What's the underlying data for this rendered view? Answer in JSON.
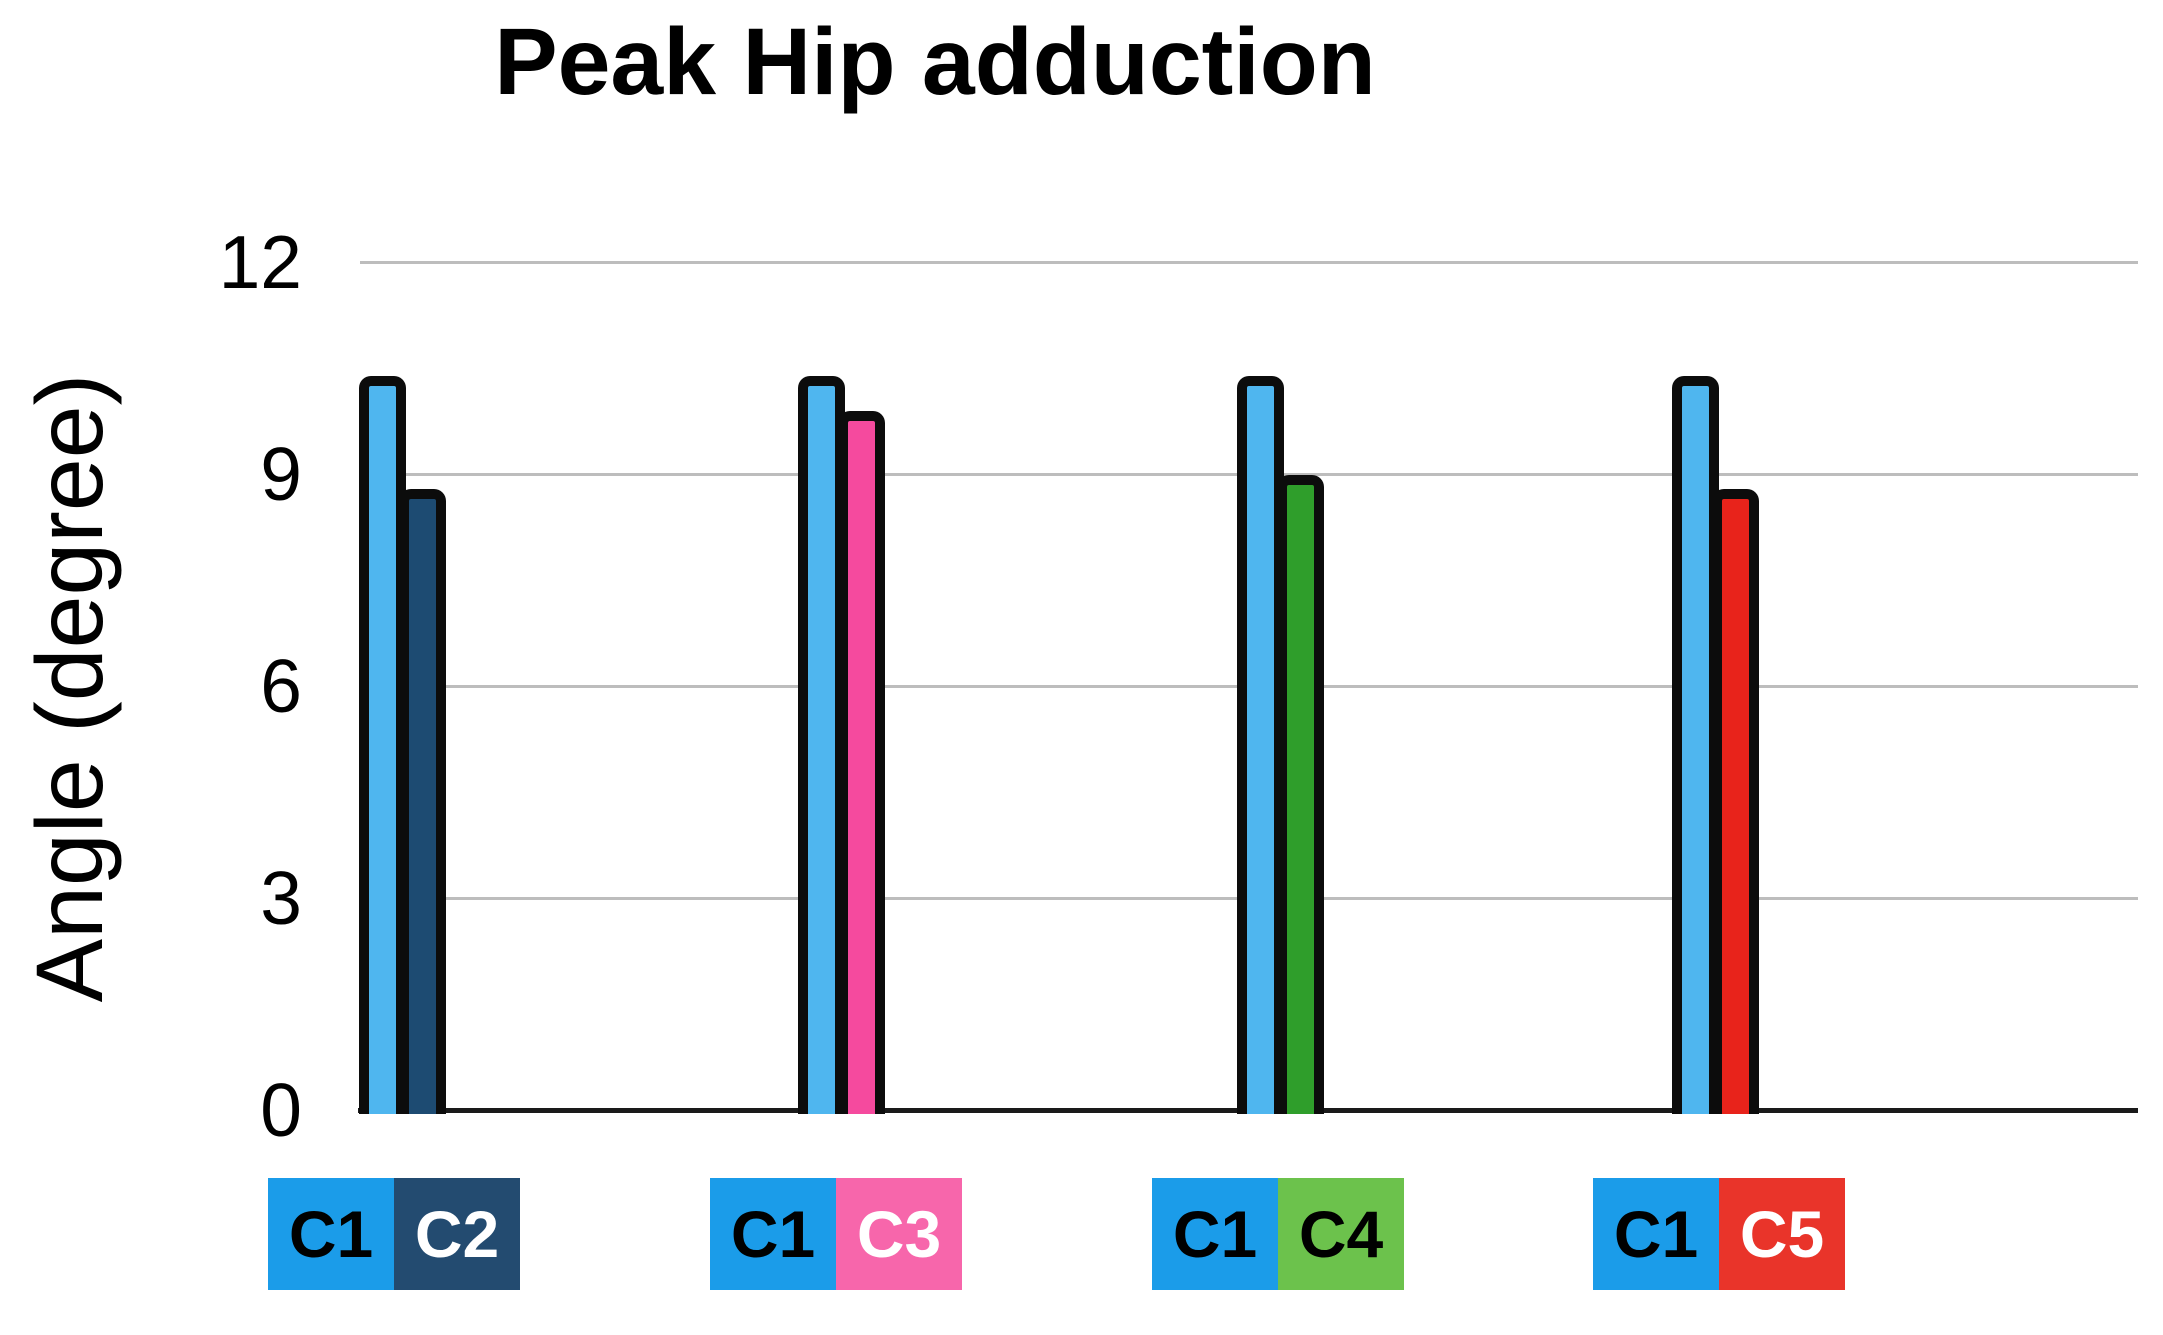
{
  "chart_data": {
    "type": "bar",
    "title": "Peak Hip adduction",
    "xlabel": "",
    "ylabel": "Angle (degree)",
    "ylim": [
      0,
      12
    ],
    "yticks": [
      12,
      9,
      6,
      3,
      0
    ],
    "ytick_labels": [
      "12",
      "9",
      "6",
      "3",
      "0"
    ],
    "grid": "horizontal",
    "gridline_values": [
      12,
      9,
      6,
      3
    ],
    "legend_position": "bottom",
    "bar_outline_color": "#0c0c0c",
    "grid_color": "#bdbdbd",
    "axis_color": "#1a1a1a",
    "groups": [
      {
        "pair": "C1 vs C2",
        "bars": [
          {
            "label": "C1",
            "value": 10.3,
            "fill": "#4fb6ef"
          },
          {
            "label": "C2",
            "value": 8.7,
            "fill": "#1d4b72"
          }
        ],
        "legend": [
          {
            "label": "C1",
            "color": "#1b9ce9",
            "text_color": "#000000"
          },
          {
            "label": "C2",
            "color": "#234b70",
            "text_color": "#ffffff"
          }
        ]
      },
      {
        "pair": "C1 vs C3",
        "bars": [
          {
            "label": "C1",
            "value": 10.3,
            "fill": "#4fb6ef"
          },
          {
            "label": "C3",
            "value": 9.8,
            "fill": "#f54a9e"
          }
        ],
        "legend": [
          {
            "label": "C1",
            "color": "#1b9ce9",
            "text_color": "#000000"
          },
          {
            "label": "C3",
            "color": "#f766ab",
            "text_color": "#ffffff"
          }
        ]
      },
      {
        "pair": "C1 vs C4",
        "bars": [
          {
            "label": "C1",
            "value": 10.3,
            "fill": "#4fb6ef"
          },
          {
            "label": "C4",
            "value": 8.9,
            "fill": "#2f9e2b"
          }
        ],
        "legend": [
          {
            "label": "C1",
            "color": "#1b9ce9",
            "text_color": "#000000"
          },
          {
            "label": "C4",
            "color": "#6cc24c",
            "text_color": "#000000"
          }
        ]
      },
      {
        "pair": "C1 vs C5",
        "bars": [
          {
            "label": "C1",
            "value": 10.3,
            "fill": "#4fb6ef"
          },
          {
            "label": "C5",
            "value": 8.7,
            "fill": "#e8231b"
          }
        ],
        "legend": [
          {
            "label": "C1",
            "color": "#1b9ce9",
            "text_color": "#000000"
          },
          {
            "label": "C5",
            "color": "#e9342a",
            "text_color": "#ffffff"
          }
        ]
      }
    ]
  }
}
